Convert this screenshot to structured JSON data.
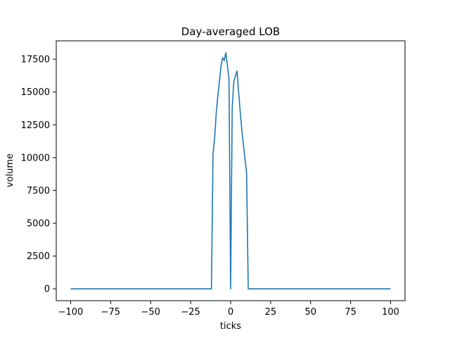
{
  "chart_data": {
    "type": "line",
    "title": "Day-averaged LOB",
    "xlabel": "ticks",
    "ylabel": "volume",
    "xlim": [
      -109,
      109
    ],
    "ylim": [
      -900,
      18900
    ],
    "xticks": [
      -100,
      -75,
      -50,
      -25,
      0,
      25,
      50,
      75,
      100
    ],
    "yticks": [
      0,
      2500,
      5000,
      7500,
      10000,
      12500,
      15000,
      17500
    ],
    "grid": false,
    "line_color": "#1f77b4",
    "series": [
      {
        "x": [
          -100,
          -12,
          -11,
          -10,
          -9,
          -8,
          -7,
          -6,
          -5,
          -4,
          -3,
          -2,
          -1,
          0,
          1,
          2,
          3,
          4,
          5,
          6,
          7,
          8,
          9,
          10,
          11,
          100
        ],
        "y": [
          0,
          0,
          10300,
          11500,
          13400,
          14700,
          15800,
          17000,
          17600,
          17400,
          18000,
          17000,
          16000,
          0,
          13800,
          15800,
          16200,
          16600,
          15000,
          13500,
          12100,
          11000,
          9900,
          8800,
          0,
          0
        ]
      }
    ]
  }
}
